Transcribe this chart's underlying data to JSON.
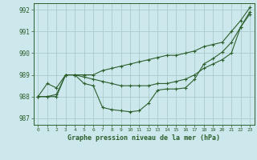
{
  "title": "Graphe pression niveau de la mer (hPa)",
  "bg_color": "#cce8ec",
  "grid_color": "#aacccc",
  "line_color": "#2d5f2d",
  "xlim": [
    -0.5,
    23.5
  ],
  "ylim": [
    986.7,
    992.3
  ],
  "yticks": [
    987,
    988,
    989,
    990,
    991,
    992
  ],
  "xticks": [
    0,
    1,
    2,
    3,
    4,
    5,
    6,
    7,
    8,
    9,
    10,
    11,
    12,
    13,
    14,
    15,
    16,
    17,
    18,
    19,
    20,
    21,
    22,
    23
  ],
  "series1": [
    988.0,
    988.0,
    988.0,
    989.0,
    989.0,
    989.0,
    989.0,
    989.2,
    989.3,
    989.4,
    989.5,
    989.6,
    989.7,
    989.8,
    989.9,
    989.9,
    990.0,
    990.1,
    990.3,
    990.4,
    990.5,
    991.0,
    991.5,
    992.1
  ],
  "series2": [
    988.0,
    988.0,
    988.1,
    989.0,
    989.0,
    988.9,
    988.8,
    988.7,
    988.6,
    988.5,
    988.5,
    988.5,
    988.5,
    988.6,
    988.6,
    988.7,
    988.8,
    989.0,
    989.3,
    989.5,
    989.7,
    990.0,
    991.2,
    991.8
  ],
  "series3": [
    988.0,
    988.6,
    988.4,
    989.0,
    989.0,
    988.6,
    988.5,
    987.5,
    987.4,
    987.35,
    987.3,
    987.35,
    987.7,
    988.3,
    988.35,
    988.35,
    988.4,
    988.8,
    989.5,
    989.75,
    990.05,
    990.5,
    991.2,
    991.9
  ]
}
